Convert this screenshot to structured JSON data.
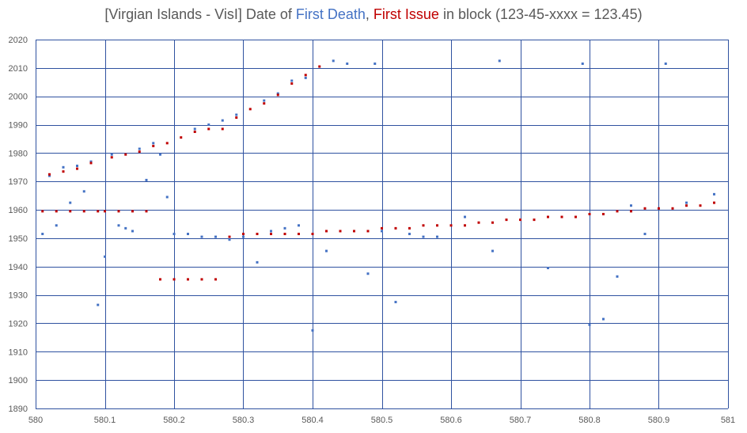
{
  "title": {
    "prefix": "[Virgian Islands - VisI] Date of ",
    "series_a": "First Death",
    "sep": ", ",
    "series_b": "First Issue",
    "suffix": " in block (123-45-xxxx = 123.45)"
  },
  "colors": {
    "first_death": "#4472C4",
    "first_issue": "#C00000",
    "grid": "#2F52A0",
    "text": "#595959"
  },
  "chart_data": {
    "type": "scatter",
    "title": "[Virgian Islands - VisI] Date of First Death, First Issue in block (123-45-xxxx = 123.45)",
    "xlim": [
      580,
      581
    ],
    "ylim": [
      1890,
      2020
    ],
    "x_ticks": [
      "580",
      "580.1",
      "580.2",
      "580.3",
      "580.4",
      "580.5",
      "580.6",
      "580.7",
      "580.8",
      "580.9",
      "581"
    ],
    "y_ticks": [
      "1890",
      "1900",
      "1910",
      "1920",
      "1930",
      "1940",
      "1950",
      "1960",
      "1970",
      "1980",
      "1990",
      "2000",
      "2010",
      "2020"
    ],
    "grid": true,
    "legend": "none",
    "series": [
      {
        "name": "First Death",
        "color": "#4472C4",
        "points": [
          [
            580.01,
            1951.5
          ],
          [
            580.02,
            1972
          ],
          [
            580.03,
            1954.5
          ],
          [
            580.04,
            1975
          ],
          [
            580.05,
            1962.5
          ],
          [
            580.06,
            1975.5
          ],
          [
            580.07,
            1966.5
          ],
          [
            580.08,
            1977
          ],
          [
            580.09,
            1926.5
          ],
          [
            580.1,
            1943.5
          ],
          [
            580.11,
            1979.5
          ],
          [
            580.12,
            1954.5
          ],
          [
            580.13,
            1953.5
          ],
          [
            580.14,
            1952.5
          ],
          [
            580.15,
            1981.5
          ],
          [
            580.16,
            1970.5
          ],
          [
            580.17,
            1983.5
          ],
          [
            580.18,
            1979.5
          ],
          [
            580.19,
            1964.5
          ],
          [
            580.2,
            1951.5
          ],
          [
            580.22,
            1951.5
          ],
          [
            580.23,
            1988.5
          ],
          [
            580.24,
            1950.5
          ],
          [
            580.25,
            1990
          ],
          [
            580.26,
            1950.5
          ],
          [
            580.27,
            1991.5
          ],
          [
            580.28,
            1949.5
          ],
          [
            580.29,
            1993.5
          ],
          [
            580.3,
            1950.5
          ],
          [
            580.32,
            1941.5
          ],
          [
            580.33,
            1998.5
          ],
          [
            580.34,
            1952.5
          ],
          [
            580.35,
            2001
          ],
          [
            580.36,
            1953.5
          ],
          [
            580.37,
            2005.5
          ],
          [
            580.38,
            1954.5
          ],
          [
            580.39,
            2006.5
          ],
          [
            580.4,
            1917.5
          ],
          [
            580.42,
            1945.5
          ],
          [
            580.43,
            2012.5
          ],
          [
            580.45,
            2011.5
          ],
          [
            580.48,
            1937.5
          ],
          [
            580.49,
            2011.5
          ],
          [
            580.5,
            1952.5
          ],
          [
            580.52,
            1927.5
          ],
          [
            580.54,
            1951.5
          ],
          [
            580.56,
            1950.5
          ],
          [
            580.58,
            1950.5
          ],
          [
            580.62,
            1957.5
          ],
          [
            580.66,
            1945.5
          ],
          [
            580.67,
            2012.5
          ],
          [
            580.74,
            1939.5
          ],
          [
            580.79,
            2011.5
          ],
          [
            580.8,
            1919.5
          ],
          [
            580.82,
            1921.5
          ],
          [
            580.84,
            1936.5
          ],
          [
            580.86,
            1961.5
          ],
          [
            580.88,
            1951.5
          ],
          [
            580.91,
            2011.5
          ],
          [
            580.94,
            1962.5
          ],
          [
            580.98,
            1965.5
          ]
        ]
      },
      {
        "name": "First Issue",
        "color": "#C00000",
        "points": [
          [
            580.01,
            1959.5
          ],
          [
            580.02,
            1972.5
          ],
          [
            580.03,
            1959.5
          ],
          [
            580.04,
            1973.5
          ],
          [
            580.05,
            1959.5
          ],
          [
            580.06,
            1974.5
          ],
          [
            580.07,
            1959.5
          ],
          [
            580.08,
            1976.5
          ],
          [
            580.09,
            1959.5
          ],
          [
            580.1,
            1959.5
          ],
          [
            580.11,
            1978.5
          ],
          [
            580.12,
            1959.5
          ],
          [
            580.13,
            1979.5
          ],
          [
            580.14,
            1959.5
          ],
          [
            580.15,
            1980.5
          ],
          [
            580.16,
            1959.5
          ],
          [
            580.17,
            1982.5
          ],
          [
            580.18,
            1935.5
          ],
          [
            580.19,
            1983.5
          ],
          [
            580.2,
            1935.5
          ],
          [
            580.21,
            1985.5
          ],
          [
            580.22,
            1935.5
          ],
          [
            580.23,
            1987.5
          ],
          [
            580.24,
            1935.5
          ],
          [
            580.25,
            1988.5
          ],
          [
            580.26,
            1935.5
          ],
          [
            580.27,
            1988.5
          ],
          [
            580.28,
            1950.5
          ],
          [
            580.29,
            1992.5
          ],
          [
            580.3,
            1951.5
          ],
          [
            580.31,
            1995.5
          ],
          [
            580.32,
            1951.5
          ],
          [
            580.33,
            1997.5
          ],
          [
            580.34,
            1951.5
          ],
          [
            580.35,
            2000.5
          ],
          [
            580.36,
            1951.5
          ],
          [
            580.37,
            2004.5
          ],
          [
            580.38,
            1951.5
          ],
          [
            580.39,
            2007.5
          ],
          [
            580.4,
            1951.5
          ],
          [
            580.41,
            2010.5
          ],
          [
            580.42,
            1952.5
          ],
          [
            580.44,
            1952.5
          ],
          [
            580.46,
            1952.5
          ],
          [
            580.48,
            1952.5
          ],
          [
            580.5,
            1953.5
          ],
          [
            580.52,
            1953.5
          ],
          [
            580.54,
            1953.5
          ],
          [
            580.56,
            1954.5
          ],
          [
            580.58,
            1954.5
          ],
          [
            580.6,
            1954.5
          ],
          [
            580.62,
            1954.5
          ],
          [
            580.64,
            1955.5
          ],
          [
            580.66,
            1955.5
          ],
          [
            580.68,
            1956.5
          ],
          [
            580.7,
            1956.5
          ],
          [
            580.72,
            1956.5
          ],
          [
            580.74,
            1957.5
          ],
          [
            580.76,
            1957.5
          ],
          [
            580.78,
            1957.5
          ],
          [
            580.8,
            1958.5
          ],
          [
            580.82,
            1958.5
          ],
          [
            580.84,
            1959.5
          ],
          [
            580.86,
            1959.5
          ],
          [
            580.88,
            1960.5
          ],
          [
            580.9,
            1960.5
          ],
          [
            580.92,
            1960.5
          ],
          [
            580.94,
            1961.5
          ],
          [
            580.96,
            1961.5
          ],
          [
            580.98,
            1962.5
          ]
        ]
      }
    ]
  }
}
